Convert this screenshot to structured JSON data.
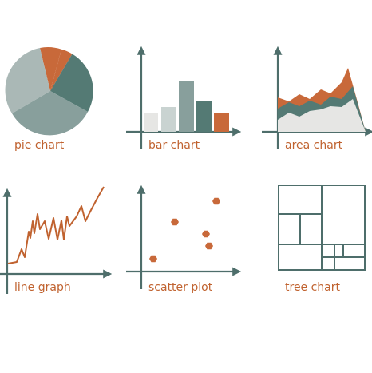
{
  "colors": {
    "axis": "#4e6e6b",
    "accent": "#c8693a",
    "teal_dark": "#547a74",
    "teal_mid": "#889f9c",
    "grey_light": "#aab8b6",
    "pale": "#e6e6e4",
    "label": "#c0622f"
  },
  "icons": [
    {
      "name": "pie-chart-icon",
      "label": "pie chart"
    },
    {
      "name": "bar-chart-icon",
      "label": "bar chart"
    },
    {
      "name": "area-chart-icon",
      "label": "area chart"
    },
    {
      "name": "line-graph-icon",
      "label": "line graph"
    },
    {
      "name": "scatter-plot-icon",
      "label": "scatter plot"
    },
    {
      "name": "tree-chart-icon",
      "label": "tree chart"
    }
  ]
}
